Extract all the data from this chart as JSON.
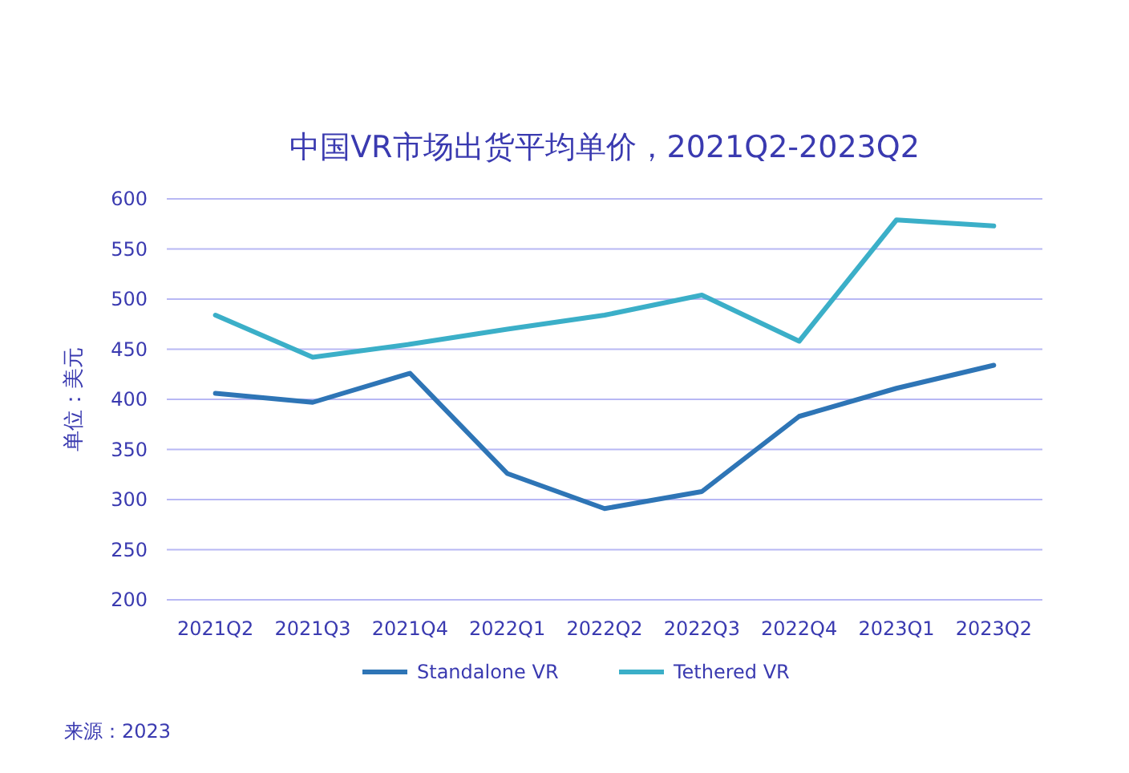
{
  "chart_data": {
    "type": "line",
    "title": "中国VR市场出货平均单价，2021Q2-2023Q2",
    "ylabel": "单位：美元",
    "categories": [
      "2021Q2",
      "2021Q3",
      "2021Q4",
      "2022Q1",
      "2022Q2",
      "2022Q3",
      "2022Q4",
      "2023Q1",
      "2023Q2"
    ],
    "series": [
      {
        "name": "Standalone VR",
        "color": "#2e75b6",
        "values": [
          406,
          397,
          426,
          326,
          291,
          308,
          383,
          411,
          434
        ]
      },
      {
        "name": "Tethered VR",
        "color": "#3bafc8",
        "values": [
          484,
          442,
          455,
          470,
          484,
          504,
          458,
          579,
          573
        ]
      }
    ],
    "ylim": [
      200,
      600
    ],
    "yticks": [
      200,
      250,
      300,
      350,
      400,
      450,
      500,
      550,
      600
    ],
    "grid": "y",
    "legend": "bottom",
    "marker": "none",
    "line_style": "solid",
    "annotations": [
      "来源：2023"
    ]
  }
}
